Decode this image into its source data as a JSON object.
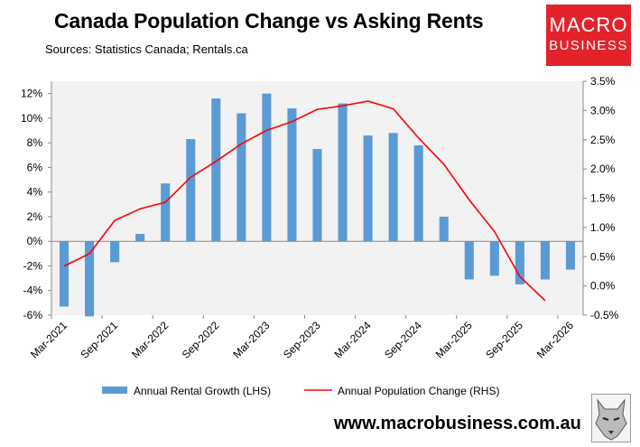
{
  "header": {
    "title": "Canada Population Change vs Asking Rents",
    "subtitle": "Sources: Statistics Canada; Rentals.ca"
  },
  "logo": {
    "line1": "MACRO",
    "line2": "BUSINESS",
    "color": "#e3232c"
  },
  "footer": {
    "website": "www.macrobusiness.com.au",
    "mascot_icon": "wolf-icon"
  },
  "chart_data": {
    "type": "bar",
    "title": "Canada Population Change vs Asking Rents",
    "x_ticks": [
      "Mar-2021",
      "Sep-2021",
      "Mar-2022",
      "Sep-2022",
      "Mar-2023",
      "Sep-2023",
      "Mar-2024",
      "Sep-2024",
      "Mar-2025",
      "Sep-2025",
      "Mar-2026"
    ],
    "left_axis": {
      "ylim": [
        -6,
        13
      ],
      "tick_labels": [
        "-6%",
        "-4%",
        "-2%",
        "0%",
        "2%",
        "4%",
        "6%",
        "8%",
        "10%",
        "12%"
      ],
      "tick_values": [
        -6,
        -4,
        -2,
        0,
        2,
        4,
        6,
        8,
        10,
        12
      ]
    },
    "right_axis": {
      "ylim": [
        -0.5,
        3.5
      ],
      "tick_labels": [
        "-0.5%",
        "0.0%",
        "0.5%",
        "1.0%",
        "1.5%",
        "2.0%",
        "2.5%",
        "3.0%",
        "3.5%"
      ],
      "tick_values": [
        -0.5,
        0,
        0.5,
        1,
        1.5,
        2,
        2.5,
        3,
        3.5
      ]
    },
    "series": [
      {
        "name": "Annual Rental Growth (LHS)",
        "type": "bar",
        "axis": "left",
        "color": "#5b9bd5",
        "x": [
          "Mar-2021",
          "Jun-2021",
          "Sep-2021",
          "Dec-2021",
          "Mar-2022",
          "Jun-2022",
          "Sep-2022",
          "Dec-2022",
          "Mar-2023",
          "Jun-2023",
          "Sep-2023",
          "Dec-2023",
          "Mar-2024",
          "Jun-2024",
          "Sep-2024",
          "Dec-2024",
          "Mar-2025",
          "Jun-2025",
          "Sep-2025",
          "Dec-2025",
          "Mar-2026"
        ],
        "values": [
          -5.3,
          -6.1,
          -1.7,
          0.6,
          4.7,
          8.3,
          11.6,
          10.4,
          12.0,
          10.8,
          7.5,
          11.2,
          8.6,
          8.8,
          7.8,
          2.0,
          -3.1,
          -2.8,
          -3.5,
          -3.1,
          -2.3
        ]
      },
      {
        "name": "Annual Population Change (RHS)",
        "type": "line",
        "axis": "right",
        "color": "#ff0000",
        "x": [
          "Mar-2021",
          "Jun-2021",
          "Sep-2021",
          "Dec-2021",
          "Mar-2022",
          "Jun-2022",
          "Sep-2022",
          "Dec-2022",
          "Mar-2023",
          "Jun-2023",
          "Sep-2023",
          "Dec-2023",
          "Mar-2024",
          "Jun-2024",
          "Sep-2024",
          "Dec-2024",
          "Mar-2025",
          "Jun-2025",
          "Sep-2025",
          "Dec-2025"
        ],
        "values": [
          0.34,
          0.55,
          1.12,
          1.32,
          1.43,
          1.86,
          2.13,
          2.43,
          2.66,
          2.81,
          3.02,
          3.08,
          3.16,
          3.03,
          2.53,
          2.08,
          1.47,
          0.93,
          0.16,
          -0.25
        ]
      }
    ],
    "grid": false,
    "plot_background": "#f2f2f2",
    "legend_position": "bottom"
  }
}
